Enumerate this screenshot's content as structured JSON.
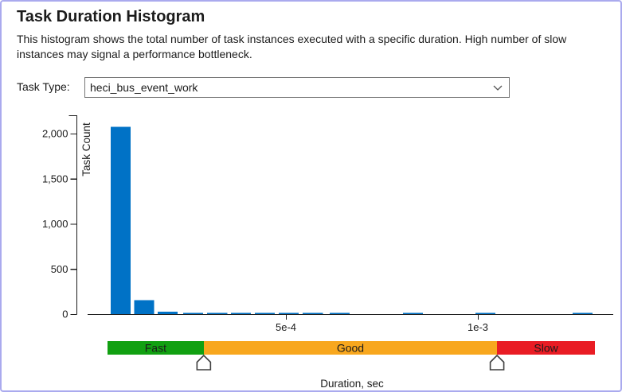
{
  "window": {
    "border_color": "#aaaaee",
    "background": "#ffffff"
  },
  "header": {
    "title": "Task Duration Histogram",
    "description": "This histogram shows the total number of task instances executed with a specific duration. High number of slow instances may signal a performance bottleneck."
  },
  "task_type": {
    "label": "Task Type:",
    "selected_option": "heci_bus_event_work",
    "chevron_icon": "chevron-down"
  },
  "chart_data": {
    "type": "bar",
    "title": "",
    "ylabel": "Task Count",
    "xlabel": "Duration, sec",
    "bar_color": "#0072C6",
    "axis_color": "#1b1b1b",
    "grid": false,
    "xlim_sec": [
      0,
      0.001353
    ],
    "ylim": [
      0,
      2200
    ],
    "y_ticks": [
      {
        "value": 0,
        "label": "0"
      },
      {
        "value": 500,
        "label": "500"
      },
      {
        "value": 1000,
        "label": "1,000"
      },
      {
        "value": 1500,
        "label": "1,500"
      },
      {
        "value": 2000,
        "label": "2,000"
      }
    ],
    "x_ticks": [
      {
        "value": 0.0005,
        "label": "5e-4"
      },
      {
        "value": 0.001,
        "label": "1e-3"
      }
    ],
    "bin_width_sec": 5.2e-05,
    "bars": [
      {
        "duration_sec": 4.36e-05,
        "count": 2075
      },
      {
        "duration_sec": 0.0001048,
        "count": 155
      },
      {
        "duration_sec": 0.000166,
        "count": 28
      },
      {
        "duration_sec": 0.000232,
        "count": 15
      },
      {
        "duration_sec": 0.000295,
        "count": 15
      },
      {
        "duration_sec": 0.000357,
        "count": 15
      },
      {
        "duration_sec": 0.000419,
        "count": 15
      },
      {
        "duration_sec": 0.000481,
        "count": 15
      },
      {
        "duration_sec": 0.000544,
        "count": 15
      },
      {
        "duration_sec": 0.000614,
        "count": 15
      },
      {
        "duration_sec": 0.000805,
        "count": 15
      },
      {
        "duration_sec": 0.000994,
        "count": 15
      },
      {
        "duration_sec": 0.001247,
        "count": 15
      }
    ],
    "threshold_bands": [
      {
        "label": "Fast",
        "from_sec": 3.5e-05,
        "to_sec": 0.000286,
        "color": "#11A011",
        "text_color": "#ffffff"
      },
      {
        "label": "Good",
        "from_sec": 0.000286,
        "to_sec": 0.00105,
        "color": "#F8A71E",
        "text_color": "#ffffff"
      },
      {
        "label": "Slow",
        "from_sec": 0.00105,
        "to_sec": 0.001305,
        "color": "#E91C24",
        "text_color": "#ffffff"
      }
    ],
    "slider_values_sec": [
      0.000286,
      0.00105
    ]
  }
}
